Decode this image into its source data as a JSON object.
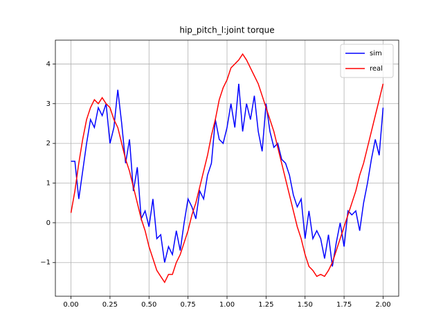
{
  "chart_data": {
    "type": "line",
    "title": "hip_pitch_l:joint torque",
    "x": [
      0,
      0.025,
      0.05,
      0.075,
      0.1,
      0.125,
      0.15,
      0.175,
      0.2,
      0.225,
      0.25,
      0.275,
      0.3,
      0.325,
      0.35,
      0.375,
      0.4,
      0.425,
      0.45,
      0.475,
      0.5,
      0.525,
      0.55,
      0.575,
      0.6,
      0.625,
      0.65,
      0.675,
      0.7,
      0.725,
      0.75,
      0.775,
      0.8,
      0.825,
      0.85,
      0.875,
      0.9,
      0.925,
      0.95,
      0.975,
      1.0,
      1.025,
      1.05,
      1.075,
      1.1,
      1.125,
      1.15,
      1.175,
      1.2,
      1.225,
      1.25,
      1.275,
      1.3,
      1.325,
      1.35,
      1.375,
      1.4,
      1.425,
      1.45,
      1.475,
      1.5,
      1.525,
      1.55,
      1.575,
      1.6,
      1.625,
      1.65,
      1.675,
      1.7,
      1.725,
      1.75,
      1.775,
      1.8,
      1.825,
      1.85,
      1.875,
      1.9,
      1.925,
      1.95,
      1.975,
      2.0
    ],
    "series": [
      {
        "name": "sim",
        "color": "#0000ff",
        "values": [
          1.55,
          1.55,
          0.6,
          1.3,
          2.0,
          2.6,
          2.4,
          2.9,
          2.7,
          3.0,
          2.0,
          2.4,
          3.35,
          2.5,
          1.5,
          2.1,
          0.8,
          1.4,
          0.1,
          0.3,
          -0.1,
          0.6,
          -0.4,
          -0.3,
          -1.0,
          -0.6,
          -0.8,
          -0.2,
          -0.7,
          0.0,
          0.6,
          0.4,
          0.1,
          0.8,
          0.6,
          1.2,
          1.5,
          2.6,
          2.1,
          2.0,
          2.4,
          3.0,
          2.4,
          3.5,
          2.3,
          3.0,
          2.6,
          3.2,
          2.3,
          1.8,
          3.0,
          2.3,
          1.9,
          2.0,
          1.6,
          1.5,
          1.2,
          0.7,
          0.4,
          0.6,
          -0.4,
          0.3,
          -0.4,
          -0.2,
          -0.4,
          -0.9,
          -0.3,
          -1.1,
          -0.5,
          0.0,
          -0.6,
          0.3,
          0.2,
          0.3,
          -0.2,
          0.5,
          1.0,
          1.6,
          2.1,
          1.7,
          2.9
        ]
      },
      {
        "name": "real",
        "color": "#ff0000",
        "values": [
          0.25,
          0.8,
          1.5,
          2.1,
          2.6,
          2.9,
          3.1,
          3.0,
          3.15,
          3.0,
          2.9,
          2.6,
          2.4,
          2.0,
          1.6,
          1.3,
          0.9,
          0.5,
          0.1,
          -0.2,
          -0.6,
          -0.9,
          -1.2,
          -1.35,
          -1.5,
          -1.3,
          -1.3,
          -1.0,
          -0.8,
          -0.5,
          -0.2,
          0.2,
          0.5,
          0.9,
          1.3,
          1.7,
          2.2,
          2.6,
          3.1,
          3.4,
          3.6,
          3.9,
          4.0,
          4.1,
          4.25,
          4.1,
          3.9,
          3.7,
          3.5,
          3.2,
          2.9,
          2.6,
          2.3,
          1.9,
          1.5,
          1.1,
          0.7,
          0.3,
          -0.1,
          -0.4,
          -0.8,
          -1.1,
          -1.2,
          -1.35,
          -1.3,
          -1.35,
          -1.2,
          -1.0,
          -0.7,
          -0.4,
          -0.1,
          0.2,
          0.5,
          0.8,
          1.2,
          1.5,
          1.9,
          2.3,
          2.7,
          3.1,
          3.5
        ]
      }
    ],
    "xlim": [
      -0.1,
      2.1
    ],
    "ylim": [
      -1.85,
      4.6
    ],
    "xticks": [
      {
        "value": 0,
        "label": "0.00"
      },
      {
        "value": 0.25,
        "label": "0.25"
      },
      {
        "value": 0.5,
        "label": "0.50"
      },
      {
        "value": 0.75,
        "label": "0.75"
      },
      {
        "value": 1,
        "label": "1.00"
      },
      {
        "value": 1.25,
        "label": "1.25"
      },
      {
        "value": 1.5,
        "label": "1.50"
      },
      {
        "value": 1.75,
        "label": "1.75"
      },
      {
        "value": 2,
        "label": "2.00"
      }
    ],
    "yticks": [
      {
        "value": -1,
        "label": "−1"
      },
      0,
      1,
      2,
      3,
      4
    ],
    "grid": true,
    "legend": "upper right"
  }
}
